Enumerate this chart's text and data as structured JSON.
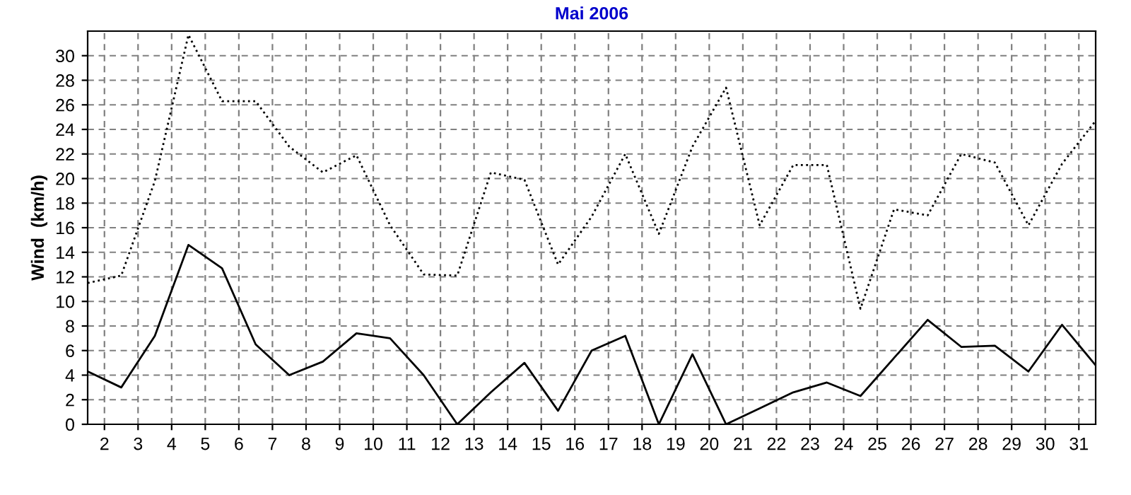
{
  "chart_data": {
    "type": "line",
    "title": "Mai 2006",
    "ylabel": "Wind  (km/h)",
    "x": [
      1.5,
      2.5,
      3.5,
      4.5,
      5.5,
      6.5,
      7.5,
      8.5,
      9.5,
      10.5,
      11.5,
      12.5,
      13.5,
      14.5,
      15.5,
      16.5,
      17.5,
      18.5,
      19.5,
      20.5,
      21.5,
      22.5,
      23.5,
      24.5,
      25.5,
      26.5,
      27.5,
      28.5,
      29.5,
      30.5,
      31.5
    ],
    "series": [
      {
        "color": "#000000",
        "line_style": "solid",
        "values": [
          4.3,
          3.0,
          7.2,
          14.6,
          12.7,
          6.5,
          4.0,
          5.1,
          7.4,
          7.0,
          4.0,
          0,
          2.6,
          5.0,
          1.1,
          6.0,
          7.2,
          0,
          5.7,
          0,
          1.3,
          2.6,
          3.4,
          2.3,
          5.4,
          8.5,
          6.3,
          6.4,
          4.3,
          8.1,
          4.8
        ]
      },
      {
        "color": "#000000",
        "line_style": "dotted",
        "values": [
          11.5,
          12.1,
          19.8,
          31.7,
          26.3,
          26.3,
          22.6,
          20.5,
          21.9,
          16.2,
          12.2,
          12.1,
          20.5,
          19.9,
          13.0,
          16.9,
          22.0,
          15.5,
          22.6,
          27.4,
          16.2,
          21.1,
          21.1,
          9.4,
          17.5,
          17.0,
          22.0,
          21.3,
          16.2,
          21.2,
          24.7
        ]
      }
    ],
    "xlim": [
      1.5,
      31.5
    ],
    "xticks": [
      2,
      3,
      4,
      5,
      6,
      7,
      8,
      9,
      10,
      11,
      12,
      13,
      14,
      15,
      16,
      17,
      18,
      19,
      20,
      21,
      22,
      23,
      24,
      25,
      26,
      27,
      28,
      29,
      30,
      31
    ],
    "ylim": [
      0,
      32
    ],
    "yticks": [
      0,
      2,
      4,
      6,
      8,
      10,
      12,
      14,
      16,
      18,
      20,
      22,
      24,
      26,
      28,
      30
    ],
    "grid": true
  }
}
